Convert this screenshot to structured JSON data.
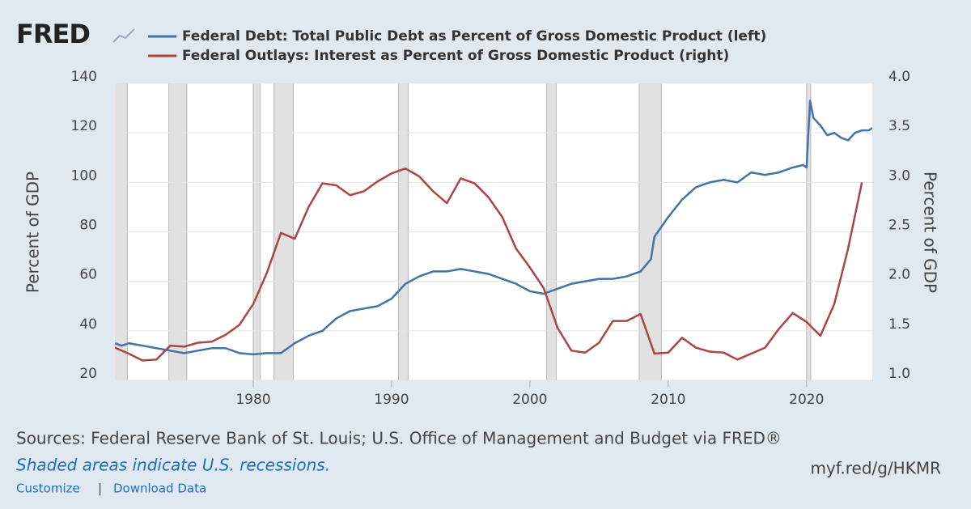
{
  "logo": "FRED",
  "chart_data": {
    "type": "line",
    "ylabel": "Percent of GDP",
    "y2label": "Percent of GDP",
    "xlim": [
      1970,
      2024.75
    ],
    "xticks": [
      1980,
      1990,
      2000,
      2010,
      2020
    ],
    "ylim": [
      20,
      140
    ],
    "yticks": [
      20,
      40,
      60,
      80,
      100,
      120,
      140
    ],
    "y2lim": [
      1,
      4
    ],
    "y2ticks": [
      {
        "value": 1,
        "label": "1.0"
      },
      {
        "value": 1.5,
        "label": "1.5"
      },
      {
        "value": 2,
        "label": "2.0"
      },
      {
        "value": 2.5,
        "label": "2.5"
      },
      {
        "value": 3,
        "label": "3.0"
      },
      {
        "value": 3.5,
        "label": "3.5"
      },
      {
        "value": 4,
        "label": "4.0"
      }
    ],
    "grid": true,
    "recessions": [
      [
        1969.92,
        1970.9
      ],
      [
        1973.9,
        1975.2
      ],
      [
        1980.0,
        1980.5
      ],
      [
        1981.5,
        1982.9
      ],
      [
        1990.5,
        1991.2
      ],
      [
        2001.2,
        2001.9
      ],
      [
        2007.9,
        2009.5
      ],
      [
        2020.0,
        2020.3
      ]
    ],
    "series": [
      {
        "name": "Federal Debt: Total Public Debt as Percent of Gross Domestic Product (left)",
        "color": "#4572a7",
        "axis": "y",
        "x": [
          1970,
          1970.5,
          1971,
          1972,
          1973,
          1974,
          1975,
          1976,
          1977,
          1978,
          1979,
          1980,
          1981,
          1982,
          1983,
          1984,
          1985,
          1986,
          1987,
          1988,
          1989,
          1990,
          1991,
          1992,
          1993,
          1994,
          1995,
          1996,
          1997,
          1998,
          1999,
          2000,
          2001,
          2002,
          2003,
          2004,
          2005,
          2006,
          2007,
          2008,
          2008.75,
          2009,
          2010,
          2011,
          2012,
          2013,
          2014,
          2015,
          2016,
          2017,
          2018,
          2019,
          2019.75,
          2020,
          2020.25,
          2020.5,
          2021,
          2021.5,
          2022,
          2022.5,
          2023,
          2023.5,
          2024,
          2024.5,
          2024.75
        ],
        "values": [
          35,
          34,
          35,
          34,
          33,
          32,
          31,
          32,
          33,
          33,
          31,
          30.5,
          31,
          31,
          35,
          38,
          40,
          45,
          48,
          49,
          50,
          53,
          59,
          62,
          64,
          64,
          65,
          64,
          63,
          61,
          59,
          56,
          55,
          57,
          59,
          60,
          61,
          61,
          62,
          64,
          69,
          78,
          86,
          93,
          98,
          100,
          101,
          100,
          104,
          103,
          104,
          106,
          107,
          106,
          133,
          126,
          123,
          119,
          120,
          118,
          117,
          120,
          121,
          121,
          122
        ]
      },
      {
        "name": "Federal Outlays: Interest as Percent of Gross Domestic Product (right)",
        "color": "#aa4643",
        "axis": "y2",
        "x": [
          1970,
          1971,
          1972,
          1973,
          1974,
          1975,
          1976,
          1977,
          1978,
          1979,
          1980,
          1981,
          1982,
          1983,
          1984,
          1985,
          1986,
          1987,
          1988,
          1989,
          1990,
          1991,
          1992,
          1993,
          1994,
          1995,
          1996,
          1997,
          1998,
          1999,
          2000,
          2001,
          2002,
          2003,
          2004,
          2005,
          2006,
          2007,
          2008,
          2009,
          2010,
          2011,
          2012,
          2013,
          2014,
          2015,
          2016,
          2017,
          2018,
          2019,
          2020,
          2021,
          2022,
          2023,
          2024
        ],
        "values": [
          1.33,
          1.27,
          1.2,
          1.21,
          1.35,
          1.34,
          1.38,
          1.39,
          1.46,
          1.56,
          1.77,
          2.09,
          2.49,
          2.43,
          2.75,
          2.99,
          2.97,
          2.87,
          2.91,
          3.01,
          3.09,
          3.14,
          3.06,
          2.91,
          2.79,
          3.04,
          2.99,
          2.85,
          2.65,
          2.33,
          2.14,
          1.93,
          1.53,
          1.3,
          1.28,
          1.38,
          1.6,
          1.6,
          1.67,
          1.27,
          1.28,
          1.43,
          1.33,
          1.29,
          1.28,
          1.21,
          1.27,
          1.33,
          1.52,
          1.68,
          1.59,
          1.45,
          1.77,
          2.33,
          3.0
        ]
      }
    ]
  },
  "footer": {
    "sources": "Sources: Federal Reserve Bank of St. Louis; U.S. Office of Management and Budget via FRED®",
    "note": "Shaded areas indicate U.S. recessions.",
    "short_url": "myf.red/g/HKMR",
    "links": [
      "Customize",
      "Download Data"
    ],
    "separator": "|"
  }
}
